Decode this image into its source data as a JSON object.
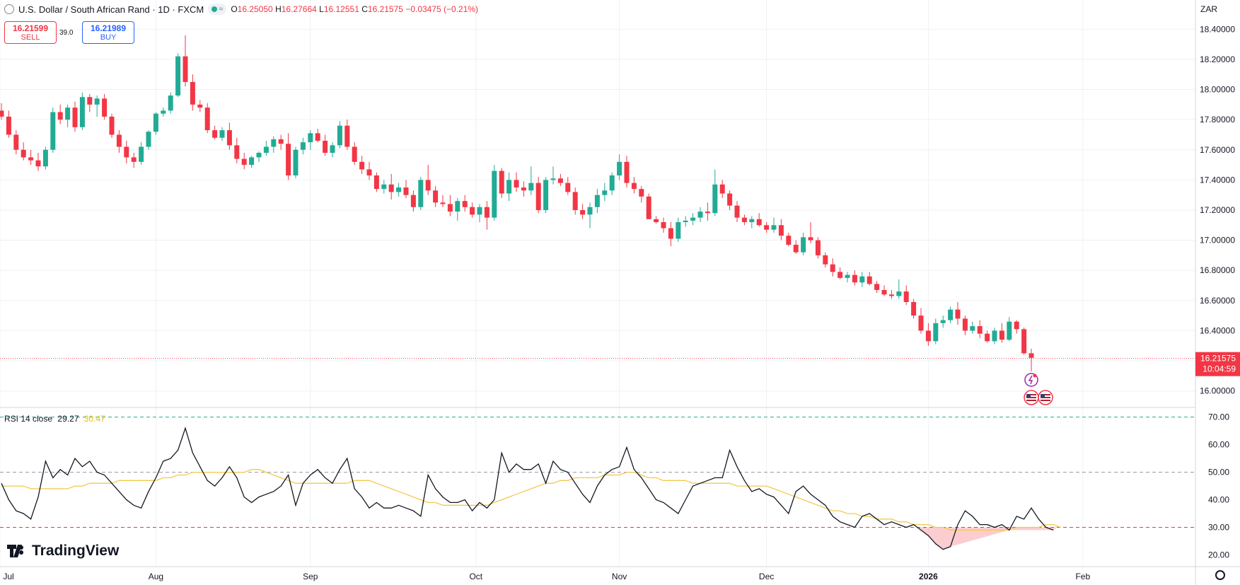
{
  "header": {
    "title": "U.S. Dollar / South African Rand · 1D · FXCM",
    "open_label": "O",
    "open": "16.25050",
    "high_label": "H",
    "high": "16.27664",
    "low_label": "L",
    "low": "16.12551",
    "close_label": "C",
    "close": "16.21575",
    "change": "−0.03475 (−0.21%)",
    "pill_icon": "wave-icon"
  },
  "trade": {
    "sell_price": "16.21599",
    "sell_label": "SELL",
    "spread": "39.0",
    "buy_price": "16.21989",
    "buy_label": "BUY"
  },
  "currency": "ZAR",
  "indicator": {
    "label": "RSI 14 close",
    "rsi": "29.27",
    "ma": "30.47"
  },
  "last_price": {
    "price": "16.21575",
    "countdown": "10:04:59"
  },
  "brand": "TradingView",
  "colors": {
    "up": "#22ab94",
    "down": "#f23645",
    "rsi_line": "#131722",
    "rsi_ma": "#f2c94c",
    "grid": "#eef1f5"
  },
  "chart_data": [
    {
      "type": "candlestick",
      "title": "U.S. Dollar / South African Rand · 1D · FXCM",
      "ylim": [
        15.9,
        18.5
      ],
      "y_ticks": [
        "18.40000",
        "18.20000",
        "18.00000",
        "17.80000",
        "17.60000",
        "17.40000",
        "17.20000",
        "17.00000",
        "16.80000",
        "16.60000",
        "16.40000",
        "16.20000",
        "16.00000"
      ],
      "x_ticks": [
        "Jul",
        "Aug",
        "Sep",
        "Oct",
        "Nov",
        "Dec",
        "2026",
        "Feb"
      ],
      "grid": true,
      "candles": [
        [
          17.86,
          17.91,
          17.8,
          17.82
        ],
        [
          17.82,
          17.86,
          17.68,
          17.7
        ],
        [
          17.7,
          17.73,
          17.57,
          17.6
        ],
        [
          17.6,
          17.65,
          17.53,
          17.55
        ],
        [
          17.55,
          17.6,
          17.5,
          17.53
        ],
        [
          17.53,
          17.58,
          17.46,
          17.49
        ],
        [
          17.49,
          17.62,
          17.47,
          17.6
        ],
        [
          17.6,
          17.88,
          17.58,
          17.85
        ],
        [
          17.85,
          17.9,
          17.77,
          17.8
        ],
        [
          17.8,
          17.9,
          17.75,
          17.88
        ],
        [
          17.88,
          17.92,
          17.72,
          17.75
        ],
        [
          17.75,
          17.98,
          17.73,
          17.95
        ],
        [
          17.95,
          17.97,
          17.85,
          17.9
        ],
        [
          17.9,
          17.96,
          17.82,
          17.94
        ],
        [
          17.94,
          17.97,
          17.8,
          17.82
        ],
        [
          17.82,
          17.84,
          17.68,
          17.7
        ],
        [
          17.7,
          17.73,
          17.58,
          17.62
        ],
        [
          17.62,
          17.66,
          17.51,
          17.55
        ],
        [
          17.55,
          17.58,
          17.48,
          17.52
        ],
        [
          17.52,
          17.65,
          17.5,
          17.62
        ],
        [
          17.62,
          17.73,
          17.6,
          17.72
        ],
        [
          17.72,
          17.85,
          17.7,
          17.84
        ],
        [
          17.84,
          17.88,
          17.82,
          17.86
        ],
        [
          17.86,
          17.98,
          17.84,
          17.96
        ],
        [
          17.96,
          18.24,
          17.95,
          18.22
        ],
        [
          18.22,
          18.36,
          18.02,
          18.05
        ],
        [
          18.05,
          18.1,
          17.86,
          17.9
        ],
        [
          17.9,
          17.93,
          17.85,
          17.88
        ],
        [
          17.88,
          17.91,
          17.71,
          17.73
        ],
        [
          17.73,
          17.76,
          17.67,
          17.68
        ],
        [
          17.68,
          17.75,
          17.66,
          17.73
        ],
        [
          17.73,
          17.78,
          17.6,
          17.63
        ],
        [
          17.63,
          17.68,
          17.51,
          17.54
        ],
        [
          17.54,
          17.58,
          17.47,
          17.5
        ],
        [
          17.5,
          17.56,
          17.48,
          17.55
        ],
        [
          17.55,
          17.59,
          17.52,
          17.58
        ],
        [
          17.58,
          17.66,
          17.56,
          17.62
        ],
        [
          17.62,
          17.69,
          17.58,
          17.67
        ],
        [
          17.67,
          17.7,
          17.6,
          17.64
        ],
        [
          17.64,
          17.71,
          17.4,
          17.43
        ],
        [
          17.43,
          17.62,
          17.41,
          17.6
        ],
        [
          17.6,
          17.68,
          17.57,
          17.65
        ],
        [
          17.65,
          17.73,
          17.6,
          17.71
        ],
        [
          17.71,
          17.74,
          17.65,
          17.66
        ],
        [
          17.66,
          17.7,
          17.56,
          17.58
        ],
        [
          17.58,
          17.65,
          17.55,
          17.63
        ],
        [
          17.63,
          17.79,
          17.61,
          17.76
        ],
        [
          17.76,
          17.8,
          17.6,
          17.62
        ],
        [
          17.62,
          17.65,
          17.5,
          17.52
        ],
        [
          17.52,
          17.56,
          17.44,
          17.47
        ],
        [
          17.47,
          17.52,
          17.4,
          17.43
        ],
        [
          17.43,
          17.45,
          17.32,
          17.34
        ],
        [
          17.34,
          17.4,
          17.31,
          17.37
        ],
        [
          17.37,
          17.44,
          17.27,
          17.32
        ],
        [
          17.32,
          17.38,
          17.29,
          17.35
        ],
        [
          17.35,
          17.4,
          17.28,
          17.3
        ],
        [
          17.3,
          17.33,
          17.19,
          17.22
        ],
        [
          17.22,
          17.42,
          17.2,
          17.4
        ],
        [
          17.4,
          17.5,
          17.3,
          17.33
        ],
        [
          17.33,
          17.36,
          17.22,
          17.25
        ],
        [
          17.25,
          17.3,
          17.22,
          17.24
        ],
        [
          17.24,
          17.3,
          17.16,
          17.19
        ],
        [
          17.19,
          17.28,
          17.13,
          17.26
        ],
        [
          17.26,
          17.3,
          17.19,
          17.22
        ],
        [
          17.22,
          17.25,
          17.15,
          17.17
        ],
        [
          17.17,
          17.24,
          17.12,
          17.22
        ],
        [
          17.22,
          17.26,
          17.07,
          17.15
        ],
        [
          17.15,
          17.5,
          17.13,
          17.46
        ],
        [
          17.46,
          17.48,
          17.28,
          17.31
        ],
        [
          17.31,
          17.45,
          17.26,
          17.4
        ],
        [
          17.4,
          17.45,
          17.32,
          17.35
        ],
        [
          17.35,
          17.39,
          17.29,
          17.33
        ],
        [
          17.33,
          17.49,
          17.3,
          17.38
        ],
        [
          17.38,
          17.42,
          17.18,
          17.2
        ],
        [
          17.2,
          17.42,
          17.18,
          17.4
        ],
        [
          17.4,
          17.49,
          17.37,
          17.41
        ],
        [
          17.41,
          17.44,
          17.36,
          17.38
        ],
        [
          17.38,
          17.42,
          17.3,
          17.32
        ],
        [
          17.32,
          17.35,
          17.17,
          17.2
        ],
        [
          17.2,
          17.24,
          17.14,
          17.17
        ],
        [
          17.17,
          17.25,
          17.08,
          17.22
        ],
        [
          17.22,
          17.34,
          17.18,
          17.3
        ],
        [
          17.3,
          17.38,
          17.26,
          17.33
        ],
        [
          17.33,
          17.45,
          17.3,
          17.43
        ],
        [
          17.43,
          17.57,
          17.4,
          17.52
        ],
        [
          17.52,
          17.56,
          17.35,
          17.38
        ],
        [
          17.38,
          17.42,
          17.31,
          17.34
        ],
        [
          17.34,
          17.36,
          17.25,
          17.29
        ],
        [
          17.29,
          17.31,
          17.14,
          17.14
        ],
        [
          17.14,
          17.16,
          17.11,
          17.12
        ],
        [
          17.12,
          17.15,
          17.05,
          17.08
        ],
        [
          17.08,
          17.12,
          16.96,
          17.01
        ],
        [
          17.01,
          17.15,
          16.99,
          17.12
        ],
        [
          17.12,
          17.16,
          17.09,
          17.13
        ],
        [
          17.13,
          17.18,
          17.1,
          17.15
        ],
        [
          17.15,
          17.22,
          17.12,
          17.19
        ],
        [
          17.19,
          17.25,
          17.13,
          17.18
        ],
        [
          17.18,
          17.47,
          17.16,
          17.37
        ],
        [
          17.37,
          17.4,
          17.28,
          17.31
        ],
        [
          17.31,
          17.33,
          17.2,
          17.23
        ],
        [
          17.23,
          17.26,
          17.12,
          17.15
        ],
        [
          17.15,
          17.17,
          17.1,
          17.12
        ],
        [
          17.12,
          17.16,
          17.08,
          17.14
        ],
        [
          17.14,
          17.18,
          17.09,
          17.1
        ],
        [
          17.1,
          17.12,
          17.05,
          17.07
        ],
        [
          17.07,
          17.15,
          17.05,
          17.1
        ],
        [
          17.1,
          17.14,
          17.0,
          17.03
        ],
        [
          17.03,
          17.05,
          16.96,
          16.97
        ],
        [
          16.97,
          17.0,
          16.91,
          16.92
        ],
        [
          16.92,
          17.05,
          16.9,
          17.02
        ],
        [
          17.02,
          17.12,
          16.98,
          17.0
        ],
        [
          17.0,
          17.02,
          16.88,
          16.9
        ],
        [
          16.9,
          16.92,
          16.82,
          16.84
        ],
        [
          16.84,
          16.88,
          16.76,
          16.79
        ],
        [
          16.79,
          16.82,
          16.74,
          16.75
        ],
        [
          16.75,
          16.79,
          16.72,
          16.77
        ],
        [
          16.77,
          16.8,
          16.7,
          16.72
        ],
        [
          16.72,
          16.79,
          16.69,
          16.76
        ],
        [
          16.76,
          16.79,
          16.7,
          16.71
        ],
        [
          16.71,
          16.73,
          16.65,
          16.67
        ],
        [
          16.67,
          16.7,
          16.63,
          16.64
        ],
        [
          16.64,
          16.67,
          16.61,
          16.63
        ],
        [
          16.63,
          16.74,
          16.61,
          16.66
        ],
        [
          16.66,
          16.7,
          16.57,
          16.59
        ],
        [
          16.59,
          16.61,
          16.48,
          16.5
        ],
        [
          16.5,
          16.55,
          16.38,
          16.4
        ],
        [
          16.4,
          16.45,
          16.3,
          16.33
        ],
        [
          16.33,
          16.48,
          16.31,
          16.45
        ],
        [
          16.45,
          16.5,
          16.42,
          16.47
        ],
        [
          16.47,
          16.56,
          16.45,
          16.54
        ],
        [
          16.54,
          16.59,
          16.44,
          16.48
        ],
        [
          16.48,
          16.5,
          16.37,
          16.4
        ],
        [
          16.4,
          16.46,
          16.38,
          16.43
        ],
        [
          16.43,
          16.47,
          16.35,
          16.38
        ],
        [
          16.38,
          16.4,
          16.32,
          16.33
        ],
        [
          16.33,
          16.42,
          16.31,
          16.4
        ],
        [
          16.4,
          16.45,
          16.32,
          16.34
        ],
        [
          16.34,
          16.49,
          16.33,
          16.46
        ],
        [
          16.46,
          16.47,
          16.38,
          16.41
        ],
        [
          16.41,
          16.42,
          16.24,
          16.25
        ],
        [
          16.25,
          16.28,
          16.13,
          16.22
        ]
      ],
      "last_price": 16.21575
    },
    {
      "type": "line",
      "title": "RSI 14 close",
      "ylim": [
        16,
        73
      ],
      "y_ticks": [
        "70.00",
        "60.00",
        "50.00",
        "40.00",
        "30.00",
        "20.00"
      ],
      "levels": [
        70,
        50,
        30
      ],
      "series": [
        {
          "name": "RSI",
          "values": [
            46,
            40,
            36,
            35,
            33,
            41,
            54,
            48,
            51,
            49,
            55,
            52,
            54,
            50,
            49,
            46,
            43,
            40,
            38,
            37,
            43,
            48,
            54,
            55,
            58,
            66,
            57,
            52,
            47,
            45,
            48,
            52,
            48,
            41,
            39,
            41,
            42,
            43,
            45,
            49,
            38,
            46,
            49,
            51,
            48,
            46,
            51,
            55,
            44,
            41,
            37,
            39,
            37,
            37,
            38,
            37,
            36,
            34,
            49,
            44,
            41,
            39,
            39,
            40,
            36,
            39,
            37,
            40,
            57,
            50,
            53,
            51,
            51,
            53,
            46,
            54,
            51,
            50,
            46,
            42,
            39,
            45,
            49,
            51,
            52,
            59,
            51,
            48,
            44,
            40,
            39,
            37,
            35,
            40,
            45,
            46,
            47,
            48,
            48,
            58,
            52,
            47,
            43,
            44,
            42,
            41,
            38,
            35,
            43,
            45,
            42,
            40,
            38,
            34,
            32,
            31,
            30,
            34,
            35,
            33,
            31,
            32,
            31,
            30,
            31,
            29,
            27,
            24,
            22,
            23,
            31,
            36,
            34,
            31,
            31,
            30,
            31,
            29,
            34,
            33,
            37,
            33,
            30,
            29
          ]
        },
        {
          "name": "RSI MA",
          "values": [
            45,
            45,
            45,
            45,
            44,
            44,
            44,
            44,
            44,
            44,
            45,
            45,
            46,
            46,
            46,
            46,
            47,
            47,
            47,
            47,
            47,
            47,
            48,
            48,
            49,
            49,
            50,
            50,
            50,
            50,
            50,
            50,
            50,
            50,
            51,
            51,
            50,
            49,
            48,
            47,
            46,
            46,
            46,
            46,
            46,
            46,
            46,
            46,
            47,
            47,
            47,
            46,
            45,
            44,
            43,
            42,
            41,
            40,
            39,
            39,
            38,
            38,
            38,
            38,
            38,
            38,
            38,
            39,
            40,
            41,
            42,
            43,
            44,
            45,
            46,
            46,
            47,
            47,
            48,
            48,
            48,
            48,
            49,
            49,
            49,
            50,
            50,
            49,
            48,
            48,
            47,
            47,
            47,
            47,
            46,
            46,
            46,
            46,
            46,
            46,
            45,
            45,
            45,
            45,
            45,
            44,
            43,
            42,
            41,
            40,
            39,
            38,
            37,
            36,
            36,
            35,
            35,
            34,
            34,
            33,
            33,
            33,
            32,
            32,
            31,
            31,
            31,
            30,
            30,
            29,
            29,
            29,
            29,
            29,
            29,
            29,
            29,
            29,
            30,
            30,
            30,
            30,
            31,
            31,
            30
          ]
        }
      ]
    }
  ]
}
